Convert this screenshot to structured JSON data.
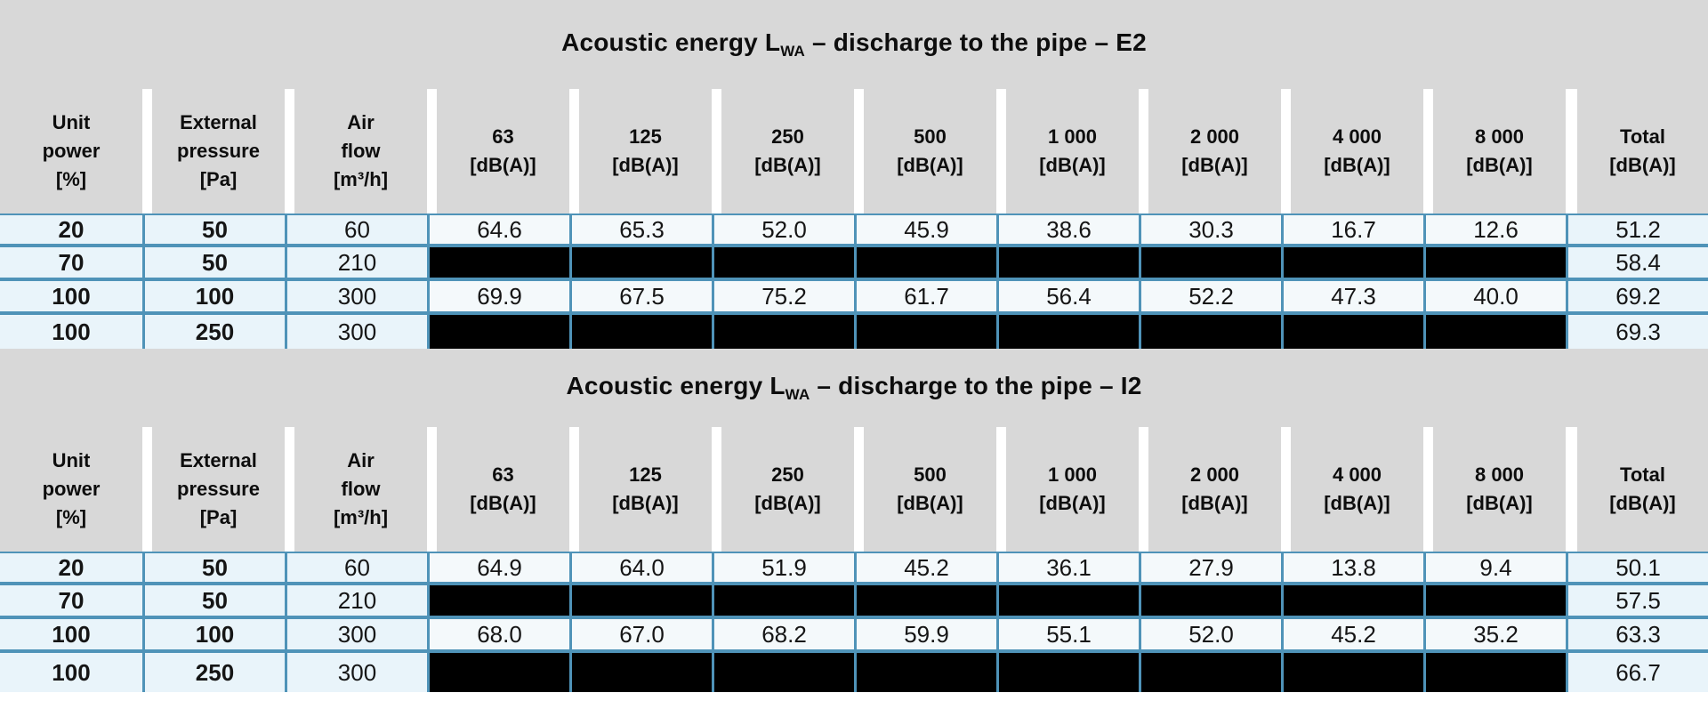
{
  "colors": {
    "header_gray": "#d8d8d8",
    "label_cell_blue": "#e9f4fa",
    "value_cell_white": "#f4f9fb",
    "border_blue": "#4f93b8",
    "redacted_black": "#000000",
    "text": "#111111"
  },
  "tables": [
    {
      "title": {
        "prefix": "Acoustic energy L",
        "subscript": "WA",
        "suffix": " – discharge to the pipe – E2"
      },
      "headers": [
        "Unit\npower\n[%]",
        "External\npressure\n[Pa]",
        "Air\nflow\n[m³/h]",
        "63\n[dB(A)]",
        "125\n[dB(A)]",
        "250\n[dB(A)]",
        "500\n[dB(A)]",
        "1 000\n[dB(A)]",
        "2 000\n[dB(A)]",
        "4 000\n[dB(A)]",
        "8 000\n[dB(A)]",
        "Total\n[dB(A)]"
      ],
      "rows": [
        {
          "cells": [
            "20",
            "50",
            "60",
            "64.6",
            "65.3",
            "52.0",
            "45.9",
            "38.6",
            "30.3",
            "16.7",
            "12.6",
            "51.2"
          ],
          "redacted": false
        },
        {
          "cells": [
            "70",
            "50",
            "210",
            "",
            "",
            "",
            "",
            "",
            "",
            "",
            "",
            "58.4"
          ],
          "redacted": true
        },
        {
          "cells": [
            "100",
            "100",
            "300",
            "69.9",
            "67.5",
            "75.2",
            "61.7",
            "56.4",
            "52.2",
            "47.3",
            "40.0",
            "69.2"
          ],
          "redacted": false
        },
        {
          "cells": [
            "100",
            "250",
            "300",
            "",
            "",
            "",
            "",
            "",
            "",
            "",
            "",
            "69.3"
          ],
          "redacted": true
        }
      ]
    },
    {
      "title": {
        "prefix": "Acoustic energy L",
        "subscript": "WA",
        "suffix": " – discharge to the pipe – I2"
      },
      "headers": [
        "Unit\npower\n[%]",
        "External\npressure\n[Pa]",
        "Air\nflow\n[m³/h]",
        "63\n[dB(A)]",
        "125\n[dB(A)]",
        "250\n[dB(A)]",
        "500\n[dB(A)]",
        "1 000\n[dB(A)]",
        "2 000\n[dB(A)]",
        "4 000\n[dB(A)]",
        "8 000\n[dB(A)]",
        "Total\n[dB(A)]"
      ],
      "rows": [
        {
          "cells": [
            "20",
            "50",
            "60",
            "64.9",
            "64.0",
            "51.9",
            "45.2",
            "36.1",
            "27.9",
            "13.8",
            "9.4",
            "50.1"
          ],
          "redacted": false
        },
        {
          "cells": [
            "70",
            "50",
            "210",
            "",
            "",
            "",
            "",
            "",
            "",
            "",
            "",
            "57.5"
          ],
          "redacted": true
        },
        {
          "cells": [
            "100",
            "100",
            "300",
            "68.0",
            "67.0",
            "68.2",
            "59.9",
            "55.1",
            "52.0",
            "45.2",
            "35.2",
            "63.3"
          ],
          "redacted": false
        },
        {
          "cells": [
            "100",
            "250",
            "300",
            "",
            "",
            "",
            "",
            "",
            "",
            "",
            "",
            "66.7"
          ],
          "redacted": true
        }
      ]
    }
  ]
}
